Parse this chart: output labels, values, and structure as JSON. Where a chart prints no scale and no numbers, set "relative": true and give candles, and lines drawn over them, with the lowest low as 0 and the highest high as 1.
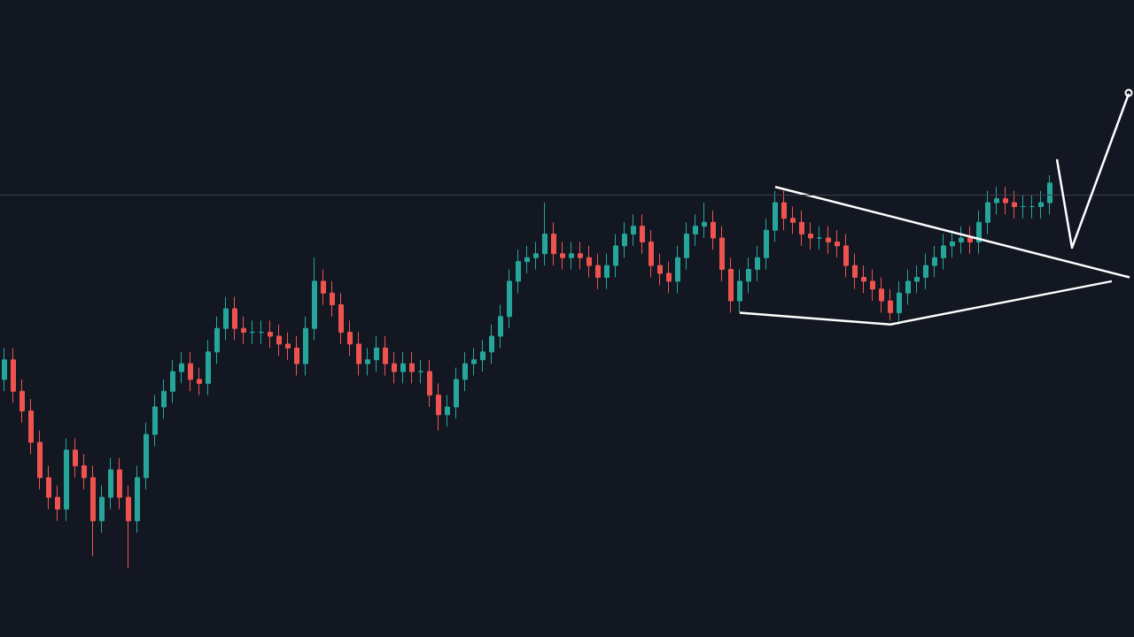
{
  "chart_data": {
    "type": "candlestick",
    "relative": true,
    "categories": [
      null,
      null,
      null,
      null,
      null,
      null,
      null,
      null,
      null,
      null,
      null,
      null,
      null,
      null,
      null,
      null,
      null,
      null,
      null,
      null,
      null,
      null,
      null,
      null,
      null,
      null,
      null,
      null,
      null,
      null,
      null,
      null,
      null,
      null,
      null,
      null,
      null,
      null,
      null,
      null,
      null,
      null,
      null,
      null,
      null,
      null,
      null,
      null,
      null,
      null,
      null,
      null,
      null,
      null,
      null,
      null,
      null,
      null,
      null,
      null,
      null,
      null,
      null,
      null,
      null,
      null,
      null,
      null,
      null,
      null,
      null,
      null,
      null,
      null,
      null,
      null,
      null,
      null,
      null,
      null,
      null,
      null,
      null,
      null,
      null,
      null,
      null,
      null,
      null,
      null,
      null,
      null,
      null,
      null,
      null,
      null,
      null,
      null,
      null,
      null,
      null,
      null,
      null,
      null,
      null,
      null,
      null,
      null,
      null,
      null,
      null,
      null,
      null,
      null,
      null,
      null,
      null,
      null,
      null,
      null,
      null,
      null,
      null,
      null,
      null,
      null,
      null,
      null
    ],
    "colors": [
      "#26a69a",
      "#ef5350",
      "#ef5350",
      "#ef5350",
      "#ef5350",
      "#ef5350",
      "#ef5350",
      "#26a69a",
      "#ef5350",
      "#ef5350",
      "#ef5350",
      "#26a69a",
      "#26a69a",
      "#ef5350",
      "#ef5350",
      "#26a69a",
      "#26a69a",
      "#26a69a",
      "#26a69a",
      "#26a69a",
      "#26a69a",
      "#ef5350",
      "#ef5350",
      "#26a69a",
      "#26a69a",
      "#26a69a",
      "#ef5350",
      "#ef5350",
      "#26a69a",
      "#26a69a",
      "#ef5350",
      "#ef5350",
      "#ef5350",
      "#ef5350",
      "#26a69a",
      "#26a69a",
      "#ef5350",
      "#ef5350",
      "#ef5350",
      "#ef5350",
      "#ef5350",
      "#26a69a",
      "#26a69a",
      "#ef5350",
      "#ef5350",
      "#26a69a",
      "#ef5350",
      "#26a69a",
      "#ef5350",
      "#ef5350",
      "#26a69a",
      "#26a69a",
      "#26a69a",
      "#26a69a",
      "#26a69a",
      "#26a69a",
      "#26a69a",
      "#26a69a",
      "#26a69a",
      "#26a69a",
      "#26a69a",
      "#26a69a",
      "#ef5350",
      "#ef5350",
      "#26a69a",
      "#ef5350",
      "#ef5350",
      "#ef5350",
      "#26a69a",
      "#26a69a",
      "#26a69a",
      "#26a69a",
      "#ef5350",
      "#ef5350",
      "#ef5350",
      "#ef5350",
      "#26a69a",
      "#26a69a",
      "#26a69a",
      "#26a69a",
      "#ef5350",
      "#ef5350",
      "#ef5350",
      "#26a69a",
      "#26a69a",
      "#26a69a",
      "#26a69a",
      "#26a69a",
      "#ef5350",
      "#ef5350",
      "#ef5350",
      "#ef5350",
      "#26a69a",
      "#ef5350",
      "#ef5350",
      "#ef5350",
      "#ef5350",
      "#ef5350",
      "#ef5350",
      "#ef5350",
      "#ef5350",
      "#26a69a",
      "#26a69a",
      "#26a69a",
      "#26a69a",
      "#26a69a",
      "#26a69a",
      "#26a69a",
      "#26a69a",
      "#ef5350",
      "#26a69a",
      "#26a69a",
      "#26a69a",
      "#ef5350",
      "#ef5350",
      "#26a69a",
      "#26a69a",
      "#26a69a",
      "#26a69a",
      null,
      null,
      null,
      null,
      null,
      null,
      null,
      null,
      null
    ],
    "ohlc": [
      [
        0.48,
        0.56,
        0.45,
        0.53
      ],
      [
        0.53,
        0.56,
        0.42,
        0.45
      ],
      [
        0.45,
        0.48,
        0.37,
        0.4
      ],
      [
        0.4,
        0.43,
        0.29,
        0.32
      ],
      [
        0.32,
        0.35,
        0.2,
        0.23
      ],
      [
        0.23,
        0.26,
        0.15,
        0.18
      ],
      [
        0.18,
        0.21,
        0.12,
        0.15
      ],
      [
        0.15,
        0.33,
        0.12,
        0.3
      ],
      [
        0.3,
        0.33,
        0.23,
        0.26
      ],
      [
        0.26,
        0.29,
        0.2,
        0.23
      ],
      [
        0.23,
        0.26,
        0.03,
        0.12
      ],
      [
        0.12,
        0.21,
        0.09,
        0.18
      ],
      [
        0.18,
        0.28,
        0.15,
        0.25
      ],
      [
        0.25,
        0.28,
        0.15,
        0.18
      ],
      [
        0.18,
        0.21,
        0.0,
        0.12
      ],
      [
        0.12,
        0.26,
        0.09,
        0.23
      ],
      [
        0.23,
        0.37,
        0.2,
        0.34
      ],
      [
        0.34,
        0.44,
        0.31,
        0.41
      ],
      [
        0.41,
        0.48,
        0.38,
        0.45
      ],
      [
        0.45,
        0.53,
        0.42,
        0.5
      ],
      [
        0.5,
        0.55,
        0.47,
        0.52
      ],
      [
        0.52,
        0.55,
        0.45,
        0.48
      ],
      [
        0.48,
        0.51,
        0.44,
        0.47
      ],
      [
        0.47,
        0.58,
        0.44,
        0.55
      ],
      [
        0.55,
        0.64,
        0.52,
        0.61
      ],
      [
        0.61,
        0.69,
        0.58,
        0.66
      ],
      [
        0.66,
        0.69,
        0.58,
        0.61
      ],
      [
        0.61,
        0.64,
        0.57,
        0.6
      ],
      [
        0.6,
        0.63,
        0.57,
        0.6
      ],
      [
        0.6,
        0.63,
        0.57,
        0.6
      ],
      [
        0.6,
        0.63,
        0.56,
        0.59
      ],
      [
        0.59,
        0.62,
        0.54,
        0.57
      ],
      [
        0.57,
        0.6,
        0.53,
        0.56
      ],
      [
        0.56,
        0.59,
        0.49,
        0.52
      ],
      [
        0.52,
        0.64,
        0.49,
        0.61
      ],
      [
        0.61,
        0.79,
        0.58,
        0.73
      ],
      [
        0.73,
        0.76,
        0.67,
        0.7
      ],
      [
        0.7,
        0.73,
        0.64,
        0.67
      ],
      [
        0.67,
        0.7,
        0.57,
        0.6
      ],
      [
        0.6,
        0.63,
        0.54,
        0.57
      ],
      [
        0.57,
        0.6,
        0.49,
        0.52
      ],
      [
        0.52,
        0.56,
        0.49,
        0.53
      ],
      [
        0.53,
        0.59,
        0.5,
        0.56
      ],
      [
        0.56,
        0.59,
        0.49,
        0.52
      ],
      [
        0.52,
        0.55,
        0.47,
        0.5
      ],
      [
        0.5,
        0.55,
        0.47,
        0.52
      ],
      [
        0.52,
        0.55,
        0.47,
        0.5
      ],
      [
        0.5,
        0.53,
        0.47,
        0.5
      ],
      [
        0.5,
        0.53,
        0.41,
        0.44
      ],
      [
        0.44,
        0.47,
        0.35,
        0.39
      ],
      [
        0.39,
        0.44,
        0.36,
        0.41
      ],
      [
        0.41,
        0.51,
        0.38,
        0.48
      ],
      [
        0.48,
        0.55,
        0.45,
        0.52
      ],
      [
        0.52,
        0.56,
        0.49,
        0.53
      ],
      [
        0.53,
        0.58,
        0.5,
        0.55
      ],
      [
        0.55,
        0.62,
        0.52,
        0.59
      ],
      [
        0.59,
        0.67,
        0.56,
        0.64
      ],
      [
        0.64,
        0.76,
        0.61,
        0.73
      ],
      [
        0.73,
        0.81,
        0.7,
        0.78
      ],
      [
        0.78,
        0.82,
        0.75,
        0.79
      ],
      [
        0.79,
        0.83,
        0.76,
        0.8
      ],
      [
        0.8,
        0.93,
        0.77,
        0.85
      ],
      [
        0.85,
        0.88,
        0.77,
        0.8
      ],
      [
        0.8,
        0.83,
        0.76,
        0.79
      ],
      [
        0.79,
        0.83,
        0.76,
        0.8
      ],
      [
        0.8,
        0.83,
        0.76,
        0.79
      ],
      [
        0.79,
        0.82,
        0.74,
        0.77
      ],
      [
        0.77,
        0.8,
        0.71,
        0.74
      ],
      [
        0.74,
        0.8,
        0.71,
        0.77
      ],
      [
        0.77,
        0.85,
        0.74,
        0.82
      ],
      [
        0.82,
        0.88,
        0.79,
        0.85
      ],
      [
        0.85,
        0.9,
        0.82,
        0.87
      ],
      [
        0.87,
        0.9,
        0.8,
        0.83
      ],
      [
        0.83,
        0.86,
        0.74,
        0.77
      ],
      [
        0.77,
        0.8,
        0.72,
        0.75
      ],
      [
        0.75,
        0.78,
        0.7,
        0.73
      ],
      [
        0.73,
        0.82,
        0.7,
        0.79
      ],
      [
        0.79,
        0.88,
        0.76,
        0.85
      ],
      [
        0.85,
        0.9,
        0.82,
        0.87
      ],
      [
        0.87,
        0.93,
        0.84,
        0.88
      ],
      [
        0.88,
        0.91,
        0.81,
        0.84
      ],
      [
        0.84,
        0.87,
        0.73,
        0.76
      ],
      [
        0.76,
        0.79,
        0.65,
        0.68
      ],
      [
        0.68,
        0.76,
        0.65,
        0.73
      ],
      [
        0.73,
        0.79,
        0.7,
        0.76
      ],
      [
        0.76,
        0.82,
        0.73,
        0.79
      ],
      [
        0.79,
        0.89,
        0.76,
        0.86
      ],
      [
        0.86,
        0.96,
        0.83,
        0.93
      ],
      [
        0.93,
        0.96,
        0.86,
        0.89
      ],
      [
        0.89,
        0.92,
        0.85,
        0.88
      ],
      [
        0.88,
        0.91,
        0.82,
        0.85
      ],
      [
        0.85,
        0.88,
        0.81,
        0.84
      ],
      [
        0.84,
        0.87,
        0.81,
        0.84
      ],
      [
        0.84,
        0.87,
        0.8,
        0.83
      ],
      [
        0.83,
        0.86,
        0.79,
        0.82
      ],
      [
        0.82,
        0.85,
        0.74,
        0.77
      ],
      [
        0.77,
        0.8,
        0.71,
        0.74
      ],
      [
        0.74,
        0.77,
        0.7,
        0.73
      ],
      [
        0.73,
        0.76,
        0.68,
        0.71
      ],
      [
        0.71,
        0.74,
        0.65,
        0.68
      ],
      [
        0.68,
        0.71,
        0.63,
        0.65
      ],
      [
        0.65,
        0.73,
        0.62,
        0.7
      ],
      [
        0.7,
        0.76,
        0.67,
        0.73
      ],
      [
        0.73,
        0.77,
        0.7,
        0.74
      ],
      [
        0.74,
        0.8,
        0.71,
        0.77
      ],
      [
        0.77,
        0.82,
        0.74,
        0.79
      ],
      [
        0.79,
        0.85,
        0.76,
        0.82
      ],
      [
        0.82,
        0.86,
        0.79,
        0.83
      ],
      [
        0.83,
        0.87,
        0.8,
        0.84
      ],
      [
        0.84,
        0.87,
        0.8,
        0.83
      ],
      [
        0.83,
        0.91,
        0.8,
        0.88
      ],
      [
        0.88,
        0.96,
        0.85,
        0.93
      ],
      [
        0.93,
        0.97,
        0.9,
        0.94
      ],
      [
        0.94,
        0.97,
        0.9,
        0.93
      ],
      [
        0.93,
        0.96,
        0.89,
        0.92
      ],
      [
        0.92,
        0.95,
        0.89,
        0.92
      ],
      [
        0.92,
        0.95,
        0.89,
        0.92
      ],
      [
        0.92,
        0.96,
        0.89,
        0.93
      ],
      [
        0.93,
        1.0,
        0.9,
        0.98
      ],
      null,
      null,
      null,
      null,
      null,
      null,
      null,
      null,
      null
    ],
    "series": [
      {
        "type": "line",
        "color": "#ffffff",
        "values": [
          null,
          null,
          null,
          null,
          null,
          null,
          null,
          null,
          null,
          null,
          null,
          null,
          null,
          null,
          null,
          null,
          null,
          null,
          null,
          null,
          null,
          null,
          null,
          null,
          null,
          null,
          null,
          null,
          null,
          null,
          null,
          null,
          null,
          null,
          null,
          null,
          null,
          null,
          null,
          null,
          null,
          null,
          null,
          null,
          null,
          null,
          null,
          null,
          null,
          null,
          null,
          null,
          null,
          null,
          null,
          null,
          null,
          null,
          null,
          null,
          null,
          null,
          null,
          null,
          null,
          null,
          null,
          null,
          null,
          null,
          null,
          null,
          null,
          null,
          null,
          null,
          null,
          null,
          null,
          null,
          null,
          null,
          null,
          null,
          null,
          null,
          null,
          0.97,
          null,
          null,
          null,
          null,
          null,
          null,
          null,
          null,
          null,
          null,
          null,
          null,
          null,
          null,
          null,
          null,
          null,
          null,
          null,
          null,
          null,
          null,
          null,
          null,
          null,
          null,
          null,
          null,
          null,
          null,
          null,
          null,
          null,
          null,
          null,
          null,
          null,
          null,
          null,
          0.74
        ]
      },
      {
        "type": "line",
        "color": "#ffffff",
        "values": [
          null,
          null,
          null,
          null,
          null,
          null,
          null,
          null,
          null,
          null,
          null,
          null,
          null,
          null,
          null,
          null,
          null,
          null,
          null,
          null,
          null,
          null,
          null,
          null,
          null,
          null,
          null,
          null,
          null,
          null,
          null,
          null,
          null,
          null,
          null,
          null,
          null,
          null,
          null,
          null,
          null,
          null,
          null,
          null,
          null,
          null,
          null,
          null,
          null,
          null,
          null,
          null,
          null,
          null,
          null,
          null,
          null,
          null,
          null,
          null,
          null,
          null,
          null,
          null,
          null,
          null,
          null,
          null,
          null,
          null,
          null,
          null,
          null,
          null,
          null,
          null,
          null,
          null,
          null,
          null,
          null,
          null,
          null,
          0.65,
          null,
          null,
          null,
          null,
          null,
          null,
          null,
          null,
          null,
          null,
          null,
          null,
          null,
          null,
          null,
          null,
          0.62,
          null,
          null,
          null,
          null,
          null,
          null,
          null,
          null,
          null,
          null,
          null,
          null,
          null,
          null,
          null,
          null,
          null,
          null,
          null,
          null,
          null,
          null,
          null,
          null,
          0.73,
          null,
          null
        ]
      }
    ],
    "ref_lines": [
      {
        "axis": "y",
        "value": 0.95,
        "color": "#3a3f4b"
      }
    ],
    "grid": false,
    "marker": "none"
  }
}
